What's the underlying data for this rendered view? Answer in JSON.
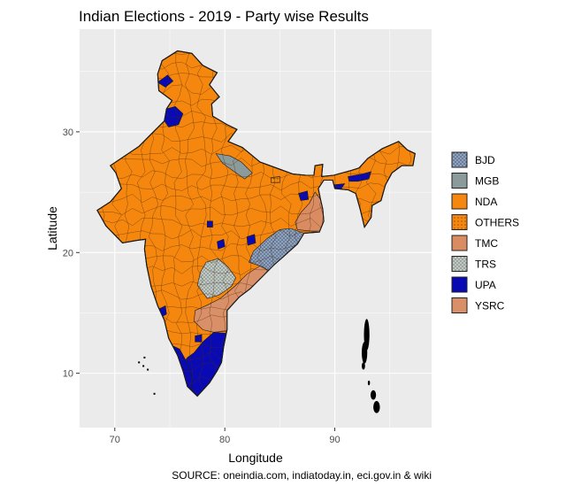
{
  "chart_data": {
    "type": "choropleth-map",
    "title": "Indian Elections - 2019 - Party wise Results",
    "xlabel": "Longitude",
    "ylabel": "Latitude",
    "xlim": [
      66.8,
      98.8
    ],
    "ylim": [
      5.5,
      38.5
    ],
    "x_ticks": [
      70,
      80,
      90
    ],
    "y_ticks": [
      10,
      20,
      30
    ],
    "grid": true,
    "legend_position": "right",
    "legend": [
      {
        "label": "BJD",
        "color": "#8fa3bf",
        "pattern": "dots"
      },
      {
        "label": "MGB",
        "color": "#8b9a9a",
        "pattern": "none"
      },
      {
        "label": "NDA",
        "color": "#f5870f",
        "pattern": "none"
      },
      {
        "label": "OTHERS",
        "color": "#f5870f",
        "pattern": "dots"
      },
      {
        "label": "TMC",
        "color": "#d98c62",
        "pattern": "none"
      },
      {
        "label": "TRS",
        "color": "#9aa59f",
        "pattern": "dots"
      },
      {
        "label": "UPA",
        "color": "#0a0ab4",
        "pattern": "none"
      },
      {
        "label": "YSRC",
        "color": "#d99068",
        "pattern": "none"
      }
    ],
    "source": "SOURCE: oneindia.com, indiatoday.in, eci.gov.in & wiki"
  }
}
